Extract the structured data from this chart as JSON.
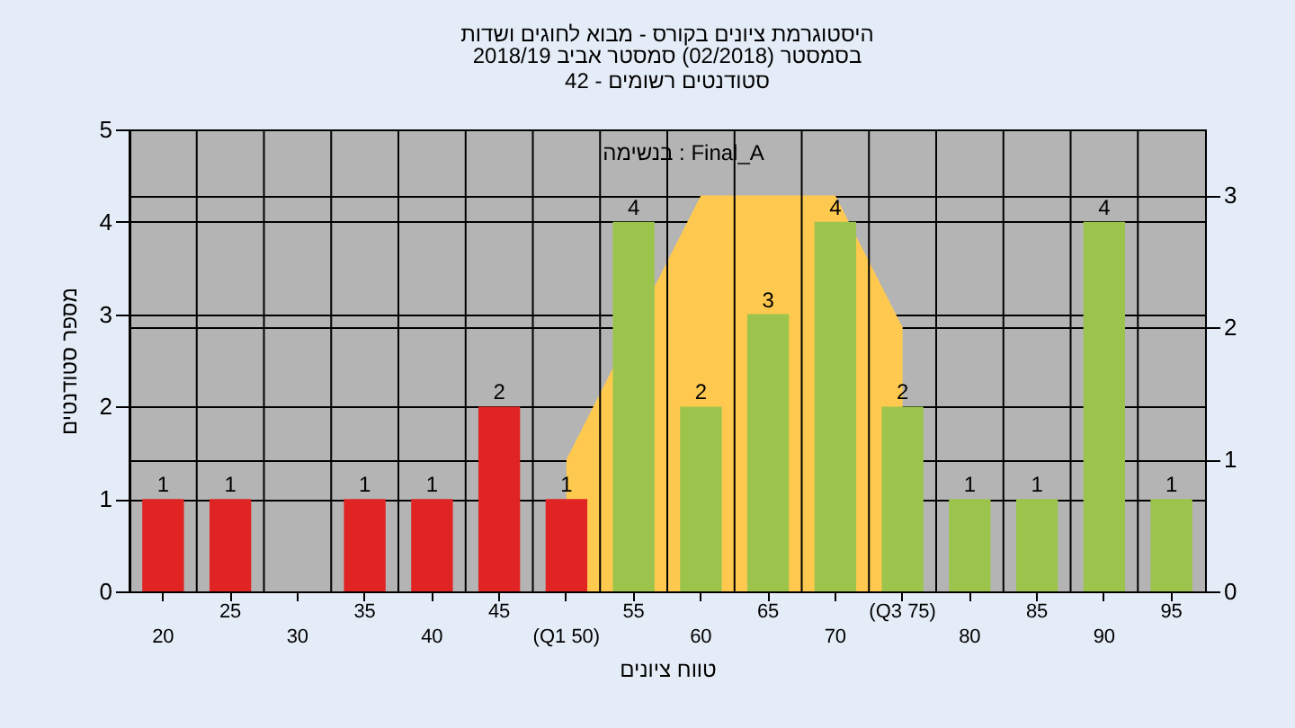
{
  "chart_data": {
    "type": "bar",
    "title": "היסטוגרמת ציונים בקורס - מבוא לחוגים ושדות",
    "subtitle": "בסמסטר  (02/2018)  סמסטר אביב 2018/19\nסטודנטים רשומים - 42",
    "xlabel": "טווח ציונים",
    "ylabel": "מספר סטודנטים",
    "annotations": [
      "בנשימה : Final_A"
    ],
    "categories": [
      "20",
      "25",
      "30",
      "35",
      "40",
      "45",
      "(Q1 50)",
      "55",
      "60",
      "65",
      "70",
      "(Q3 75)",
      "80",
      "85",
      "90",
      "95"
    ],
    "series": [
      {
        "colors": [
          "#e02424",
          "#e02424",
          "#e02424",
          "#e02424",
          "#e02424",
          "#e02424",
          "#e02424",
          "#9cc44c",
          "#9cc44c",
          "#9cc44c",
          "#9cc44c",
          "#9cc44c",
          "#9cc44c",
          "#9cc44c",
          "#9cc44c",
          "#9cc44c"
        ],
        "values": [
          1,
          1,
          0,
          1,
          1,
          2,
          1,
          4,
          2,
          3,
          4,
          2,
          1,
          1,
          4,
          1
        ],
        "value_labels": [
          "1",
          "1",
          null,
          "1",
          "1",
          "2",
          "1",
          "4",
          "2",
          "3",
          "4",
          "2",
          "1",
          "1",
          "4",
          "1"
        ]
      },
      {
        "type": "area",
        "axis": "y2",
        "color": "#ffc94f",
        "values": [
          null,
          null,
          null,
          null,
          null,
          null,
          1,
          null,
          3,
          3,
          3,
          2,
          null,
          null,
          null,
          null
        ]
      }
    ],
    "ylim": [
      0,
      5
    ],
    "yticks": [
      0,
      1,
      2,
      3,
      4,
      5
    ],
    "y2lim": [
      0,
      3.5
    ],
    "y2ticks": [
      0,
      1,
      2,
      3
    ],
    "grid": true
  }
}
